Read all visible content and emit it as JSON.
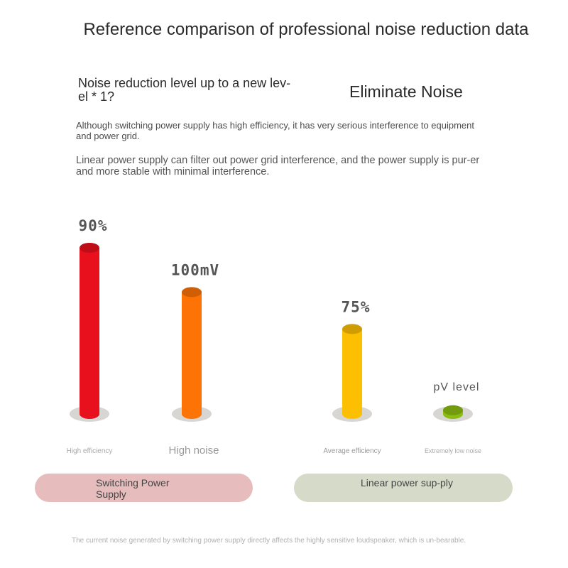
{
  "title": "Reference comparison of professional noise reduction data",
  "subheading": "Noise reduction level up to a new lev-el * 1?",
  "headline_right": "Eliminate Noise",
  "paragraph_1": "Although switching power supply has high efficiency, it has very serious interference to equipment and power grid.",
  "paragraph_2": "Linear power supply can filter out power grid interference, and the power supply is pur-er and more stable with minimal interference.",
  "groups": {
    "switching": "Switching Power Supply",
    "linear": "Linear power sup-ply"
  },
  "footnote": "The current noise generated by switching power supply directly affects the highly sensitive loudspeaker, which is un-bearable.",
  "colors": {
    "high_efficiency": "#e8101c",
    "high_noise": "#fd7305",
    "average_efficiency": "#fdbf02",
    "extremely_low_noise": "#8bbd10",
    "switching_pill": "#e6bcbd",
    "linear_pill": "#d6dac8"
  },
  "chart_data": {
    "type": "bar",
    "style": "cylinder",
    "bars": [
      {
        "category": "High efficiency",
        "value_label": "90%",
        "level": 0.9,
        "color": "#e8101c",
        "group": "Switching Power Supply"
      },
      {
        "category": "High noise",
        "value_label": "100mV",
        "level": 0.66,
        "color": "#fd7305",
        "group": "Switching Power Supply"
      },
      {
        "category": "Average efficiency",
        "value_label": "75%",
        "level": 0.46,
        "color": "#fdbf02",
        "group": "Linear power sup-ply"
      },
      {
        "category": "Extremely low noise",
        "value_label": "pV level",
        "level": 0.02,
        "color": "#8bbd10",
        "group": "Linear power sup-ply"
      }
    ],
    "axes": "none",
    "grid": false,
    "legend": "none"
  }
}
